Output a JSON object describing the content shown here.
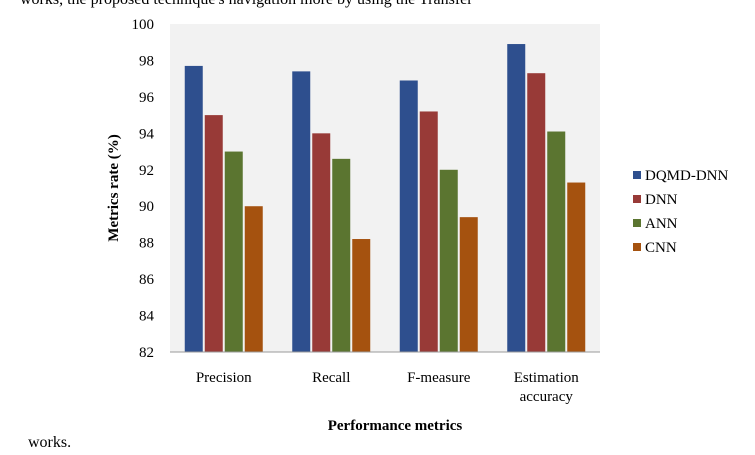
{
  "context": {
    "top_text": "works, the proposed technique's navigation more by using the Transfer",
    "bottom_text": "works."
  },
  "chart_data": {
    "type": "bar",
    "categories": [
      "Precision",
      "Recall",
      "F-measure",
      "Estimation accuracy"
    ],
    "category_lines": [
      [
        "Precision"
      ],
      [
        "Recall"
      ],
      [
        "F-measure"
      ],
      [
        "Estimation",
        "accuracy"
      ]
    ],
    "series": [
      {
        "name": "DQMD-DNN",
        "color": "#2E4F8E",
        "values": [
          97.7,
          97.4,
          96.9,
          98.9
        ]
      },
      {
        "name": "DNN",
        "color": "#983A37",
        "values": [
          95.0,
          94.0,
          95.2,
          97.3
        ]
      },
      {
        "name": "ANN",
        "color": "#5B7530",
        "values": [
          93.0,
          92.6,
          92.0,
          94.1
        ]
      },
      {
        "name": "CNN",
        "color": "#A5520F",
        "values": [
          90.0,
          88.2,
          89.4,
          91.3
        ]
      }
    ],
    "xlabel": "Performance metrics",
    "ylabel": "Metrics rate (%)",
    "ylim": [
      82,
      100
    ],
    "yticks": [
      82,
      84,
      86,
      88,
      90,
      92,
      94,
      96,
      98,
      100
    ],
    "grid": false,
    "legend": "right",
    "plot_background": "#F2F2F2"
  }
}
